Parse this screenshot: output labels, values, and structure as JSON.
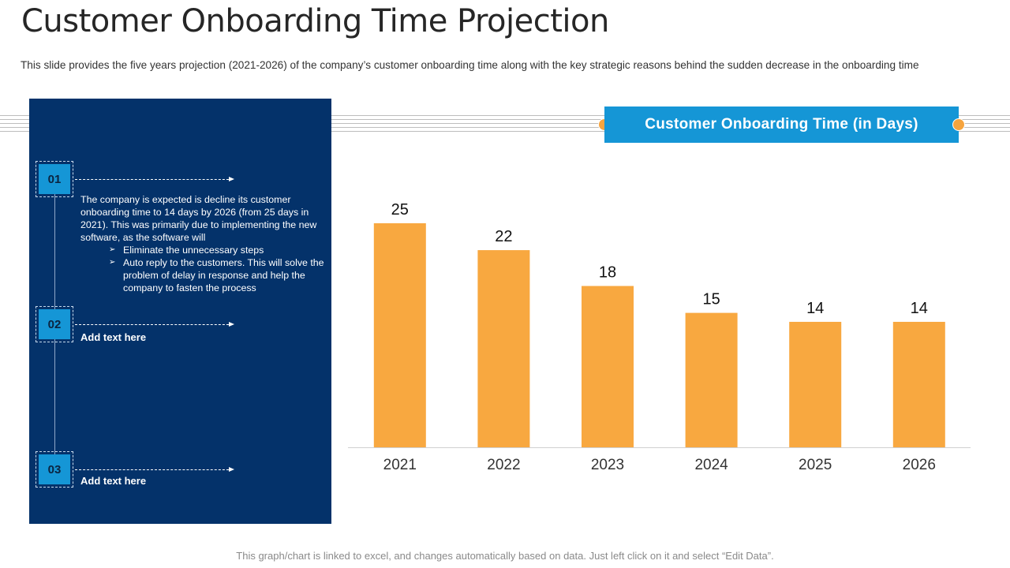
{
  "title": "Customer Onboarding Time Projection",
  "subtitle": "This slide provides the five years projection (2021-2026) of the company’s customer onboarding time along with the key strategic reasons behind the sudden decrease in the onboarding time",
  "panel": {
    "steps": [
      {
        "number": "01",
        "paragraph": "The company is expected is decline its customer onboarding  time to 14 days by 2026 (from 25 days in 2021). This was primarily due to implementing the new software, as the software will",
        "bullets": [
          "Eliminate the unnecessary steps",
          "Auto reply to the customers. This will solve the problem of delay in response and help the company to fasten the process"
        ]
      },
      {
        "number": "02",
        "label": "Add text here"
      },
      {
        "number": "03",
        "label": "Add text here"
      }
    ]
  },
  "chart_header": "Customer Onboarding Time (in Days)",
  "footer": "This graph/chart is linked to excel,  and changes automatically based on data. Just left click on it and select “Edit Data”.",
  "colors": {
    "panel": "#04326a",
    "accent_blue": "#1596d6",
    "bar": "#f8a840"
  },
  "chart_data": {
    "type": "bar",
    "categories": [
      "2021",
      "2022",
      "2023",
      "2024",
      "2025",
      "2026"
    ],
    "values": [
      25,
      22,
      18,
      15,
      14,
      14
    ],
    "title": "Customer Onboarding Time (in Days)",
    "xlabel": "",
    "ylabel": "",
    "ylim": [
      0,
      25
    ],
    "data_labels": true,
    "grid": false
  }
}
